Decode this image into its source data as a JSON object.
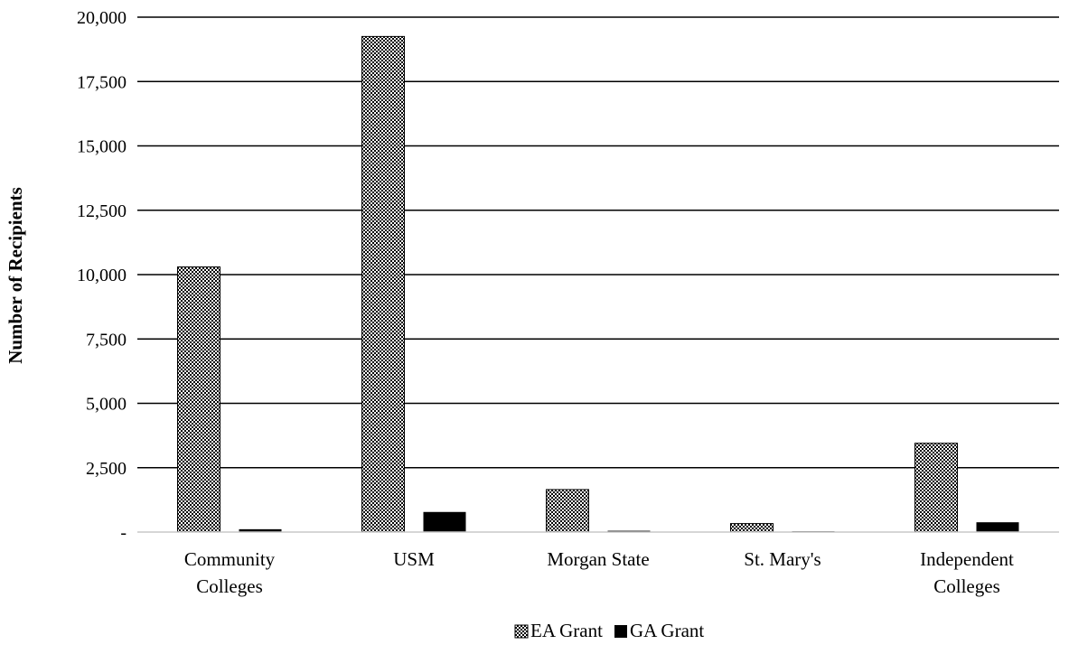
{
  "chart_data": {
    "type": "bar",
    "title": "",
    "xlabel": "",
    "ylabel": "Number of Recipients",
    "ylim": [
      0,
      20000
    ],
    "yticks": [
      0,
      2500,
      5000,
      7500,
      10000,
      12500,
      15000,
      17500,
      20000
    ],
    "ytick_labels": [
      "-",
      "2,500",
      "5,000",
      "7,500",
      "10,000",
      "12,500",
      "15,000",
      "17,500",
      "20,000"
    ],
    "grid": true,
    "legend_position": "bottom",
    "categories": [
      [
        "Community",
        "Colleges"
      ],
      [
        "USM"
      ],
      [
        "Morgan State"
      ],
      [
        "St. Mary's"
      ],
      [
        "Independent",
        "Colleges"
      ]
    ],
    "series": [
      {
        "name": "EA Grant",
        "pattern": "checkered",
        "values": [
          10300,
          19250,
          1650,
          330,
          3450
        ]
      },
      {
        "name": "GA Grant",
        "color": "#000000",
        "values": [
          110,
          780,
          50,
          30,
          380
        ]
      }
    ]
  }
}
